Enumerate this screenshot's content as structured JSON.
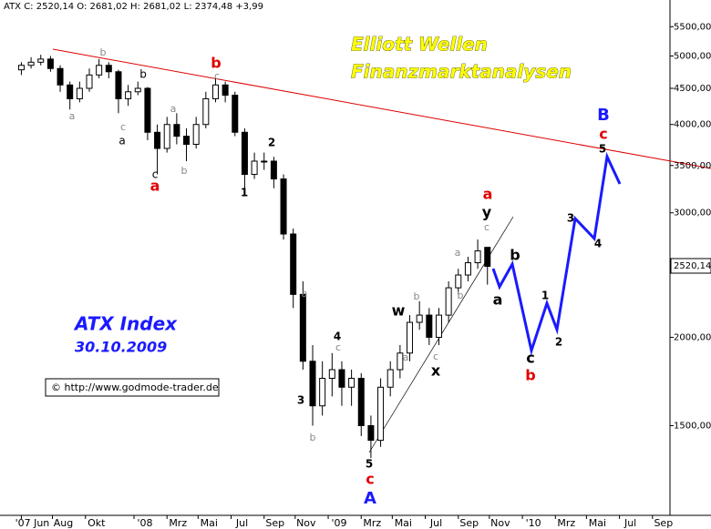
{
  "chart_data": {
    "type": "candlestick",
    "header": "ATX C: 2520,14 O: 2681,02 H: 2681,02 L: 2374,48 +3,99",
    "title": "Elliott Wellen",
    "subtitle": "Finanzmarktanalysen",
    "index_label": "ATX Index",
    "date_label": "30.10.2009",
    "copyright": "© http://www.godmode-trader.de",
    "last_price_label": "2520,14",
    "log_scale": true,
    "grid": false,
    "color": "#000000",
    "x": [
      2007.42,
      2007.47,
      2007.52,
      2007.57,
      2007.62,
      2007.67,
      2007.72,
      2007.77,
      2007.82,
      2007.87,
      2007.92,
      2007.97,
      2008.02,
      2008.07,
      2008.12,
      2008.17,
      2008.22,
      2008.27,
      2008.32,
      2008.37,
      2008.42,
      2008.47,
      2008.52,
      2008.57,
      2008.62,
      2008.67,
      2008.72,
      2008.77,
      2008.82,
      2008.87,
      2008.92,
      2008.97,
      2009.02,
      2009.07,
      2009.12,
      2009.17,
      2009.22,
      2009.27,
      2009.32,
      2009.37,
      2009.42,
      2009.47,
      2009.52,
      2009.57,
      2009.62,
      2009.67,
      2009.72,
      2009.77,
      2009.82
    ],
    "open": [
      4780,
      4850,
      4900,
      4950,
      4800,
      4550,
      4350,
      4500,
      4700,
      4850,
      4750,
      4350,
      4450,
      4500,
      3900,
      3700,
      4000,
      3850,
      3750,
      4000,
      4350,
      4550,
      4400,
      3900,
      3400,
      3550,
      3550,
      3350,
      2800,
      2300,
      1850,
      1600,
      1750,
      1800,
      1700,
      1750,
      1500,
      1430,
      1700,
      1800,
      1900,
      2100,
      2150,
      2000,
      2150,
      2350,
      2450,
      2550,
      2681.02
    ],
    "high": [
      4900,
      4980,
      5020,
      5000,
      4850,
      4600,
      4600,
      4800,
      4950,
      4900,
      4780,
      4550,
      4600,
      4520,
      4000,
      4100,
      4150,
      3950,
      4100,
      4450,
      4650,
      4600,
      4450,
      3950,
      3650,
      3650,
      3600,
      3400,
      2850,
      2400,
      1950,
      1850,
      1900,
      1850,
      1800,
      1780,
      1550,
      1750,
      1850,
      1950,
      2150,
      2250,
      2200,
      2200,
      2400,
      2500,
      2600,
      2750,
      2681.02
    ],
    "low": [
      4700,
      4800,
      4850,
      4750,
      4450,
      4200,
      4300,
      4450,
      4650,
      4650,
      4150,
      4250,
      4400,
      3800,
      3400,
      3650,
      3750,
      3550,
      3700,
      3950,
      4300,
      4300,
      3850,
      3250,
      3350,
      3450,
      3250,
      2750,
      2200,
      1800,
      1500,
      1550,
      1650,
      1600,
      1600,
      1450,
      1350,
      1400,
      1650,
      1750,
      1850,
      2050,
      1950,
      1950,
      2100,
      2300,
      2400,
      2500,
      2374.48
    ],
    "close": [
      4850,
      4900,
      4950,
      4800,
      4550,
      4350,
      4500,
      4700,
      4850,
      4750,
      4350,
      4450,
      4500,
      3900,
      3700,
      4000,
      3850,
      3750,
      4000,
      4350,
      4550,
      4400,
      3900,
      3400,
      3550,
      3550,
      3350,
      2800,
      2300,
      1850,
      1600,
      1750,
      1800,
      1700,
      1750,
      1500,
      1430,
      1700,
      1800,
      1900,
      2100,
      2150,
      2000,
      2150,
      2350,
      2450,
      2550,
      2650,
      2520.14
    ],
    "xlim": [
      2007.31,
      2010.76
    ],
    "xticks": [
      {
        "value": 2007.42,
        "label": "'07 Jun"
      },
      {
        "value": 2007.58,
        "label": "Aug"
      },
      {
        "value": 2007.75,
        "label": "Okt"
      },
      {
        "value": 2008.0,
        "label": "'08"
      },
      {
        "value": 2008.17,
        "label": "Mrz"
      },
      {
        "value": 2008.33,
        "label": "Mai"
      },
      {
        "value": 2008.5,
        "label": "Jul"
      },
      {
        "value": 2008.67,
        "label": "Sep"
      },
      {
        "value": 2008.83,
        "label": "Nov"
      },
      {
        "value": 2009.0,
        "label": "'09"
      },
      {
        "value": 2009.17,
        "label": "Mrz"
      },
      {
        "value": 2009.33,
        "label": "Mai"
      },
      {
        "value": 2009.5,
        "label": "Jul"
      },
      {
        "value": 2009.67,
        "label": "Sep"
      },
      {
        "value": 2009.83,
        "label": "Nov"
      },
      {
        "value": 2010.0,
        "label": "'10"
      },
      {
        "value": 2010.17,
        "label": "Mrz"
      },
      {
        "value": 2010.33,
        "label": "Mai"
      },
      {
        "value": 2010.5,
        "label": "Jul"
      },
      {
        "value": 2010.67,
        "label": "Sep"
      }
    ],
    "ylim": [
      1120,
      6000
    ],
    "yticks": [
      {
        "value": 1500,
        "label": "1500,00"
      },
      {
        "value": 2000,
        "label": "2000,00"
      },
      {
        "value": 3000,
        "label": "3000,00"
      },
      {
        "value": 3500,
        "label": "3500,00"
      },
      {
        "value": 4000,
        "label": "4000,00"
      },
      {
        "value": 4500,
        "label": "4500,00"
      },
      {
        "value": 5000,
        "label": "5000,00"
      },
      {
        "value": 5500,
        "label": "5500,00"
      }
    ],
    "annotations": [
      "b",
      "a",
      "c",
      "a",
      "b",
      "c",
      "a",
      "c",
      "b",
      "a",
      "b",
      "c",
      "a",
      "b",
      "c",
      "b",
      "a",
      "c",
      "2",
      "1",
      "4",
      "3",
      "5",
      "w",
      "x",
      "y",
      "a",
      "b",
      "c",
      "1",
      "2",
      "3",
      "4",
      "5",
      "b",
      "a",
      "c",
      "a",
      "b",
      "c",
      "A",
      "B"
    ]
  }
}
